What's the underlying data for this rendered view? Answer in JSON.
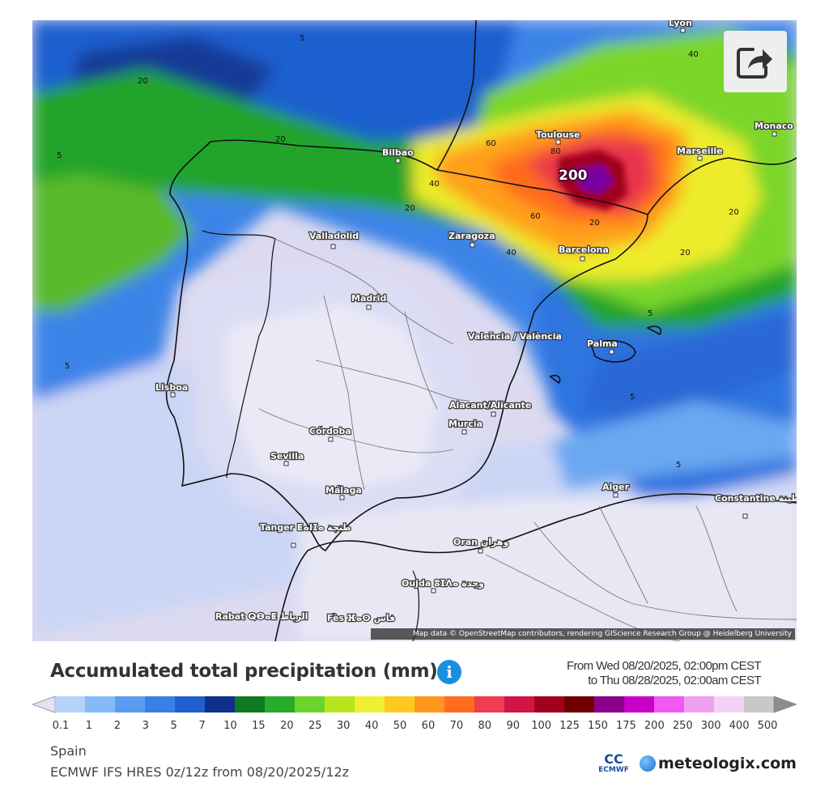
{
  "map": {
    "cities": [
      {
        "name": "Lyon"
      },
      {
        "name": "Monaco"
      },
      {
        "name": "Marseille"
      },
      {
        "name": "Toulouse"
      },
      {
        "name": "Bilbao"
      },
      {
        "name": "Zaragoza"
      },
      {
        "name": "Barcelona"
      },
      {
        "name": "Valladolid"
      },
      {
        "name": "Madrid"
      },
      {
        "name": "Valencia / València"
      },
      {
        "name": "Palma"
      },
      {
        "name": "Lisboa"
      },
      {
        "name": "Alacant/Alicante"
      },
      {
        "name": "Murcia"
      },
      {
        "name": "Córdoba"
      },
      {
        "name": "Sevilla"
      },
      {
        "name": "Málaga"
      },
      {
        "name": "Alger"
      },
      {
        "name": "Constantine قسنطينة"
      },
      {
        "name": "Tanger ⵟⴰⵏⵊⴰ طنجة"
      },
      {
        "name": "Oran وهران"
      },
      {
        "name": "Oujda ⵓⵊⴷⴰ وجدة"
      },
      {
        "name": "Rabat ⵕⴱⴰⵟ الرباط"
      },
      {
        "name": "Fès ⴼⴰⵙ فاس"
      }
    ],
    "contour_labels": [
      "5",
      "20",
      "40",
      "60",
      "80",
      "200"
    ],
    "max_label": "200",
    "attribution": "Map data © OpenStreetMap contributors, rendering GIScience Research Group @ Heidelberg University"
  },
  "share_icon": "share-icon",
  "header": {
    "title": "Accumulated total precipitation (mm)",
    "info_icon": "i",
    "period_line1": "From Wed 08/20/2025, 02:00pm CEST",
    "period_line2": "to Thu 08/28/2025, 02:00am CEST"
  },
  "legend": {
    "labels": [
      "0.1",
      "1",
      "2",
      "3",
      "5",
      "7",
      "10",
      "15",
      "20",
      "25",
      "30",
      "40",
      "50",
      "60",
      "70",
      "80",
      "90",
      "100",
      "125",
      "150",
      "175",
      "200",
      "250",
      "300",
      "400",
      "500"
    ],
    "colors": [
      "#e3e1f3",
      "#b4d2fa",
      "#86b9f7",
      "#5a9cf0",
      "#3a7fe6",
      "#1f5fcf",
      "#0e2f8c",
      "#0f7a22",
      "#2aaa2a",
      "#6cd22c",
      "#b8e61e",
      "#f0f032",
      "#ffc81e",
      "#ff961e",
      "#ff6e1e",
      "#f03c50",
      "#d21446",
      "#a0001e",
      "#6e0000",
      "#8c008c",
      "#c800c8",
      "#f05af0",
      "#f0a0f0",
      "#f5d2f5",
      "#c8c8c8",
      "#8c8c8c"
    ]
  },
  "footer": {
    "region": "Spain",
    "model": "ECMWF IFS HRES 0z/12z from 08/20/2025/12z",
    "ecmwf": "ECMWF",
    "brand": "meteologix.com"
  }
}
